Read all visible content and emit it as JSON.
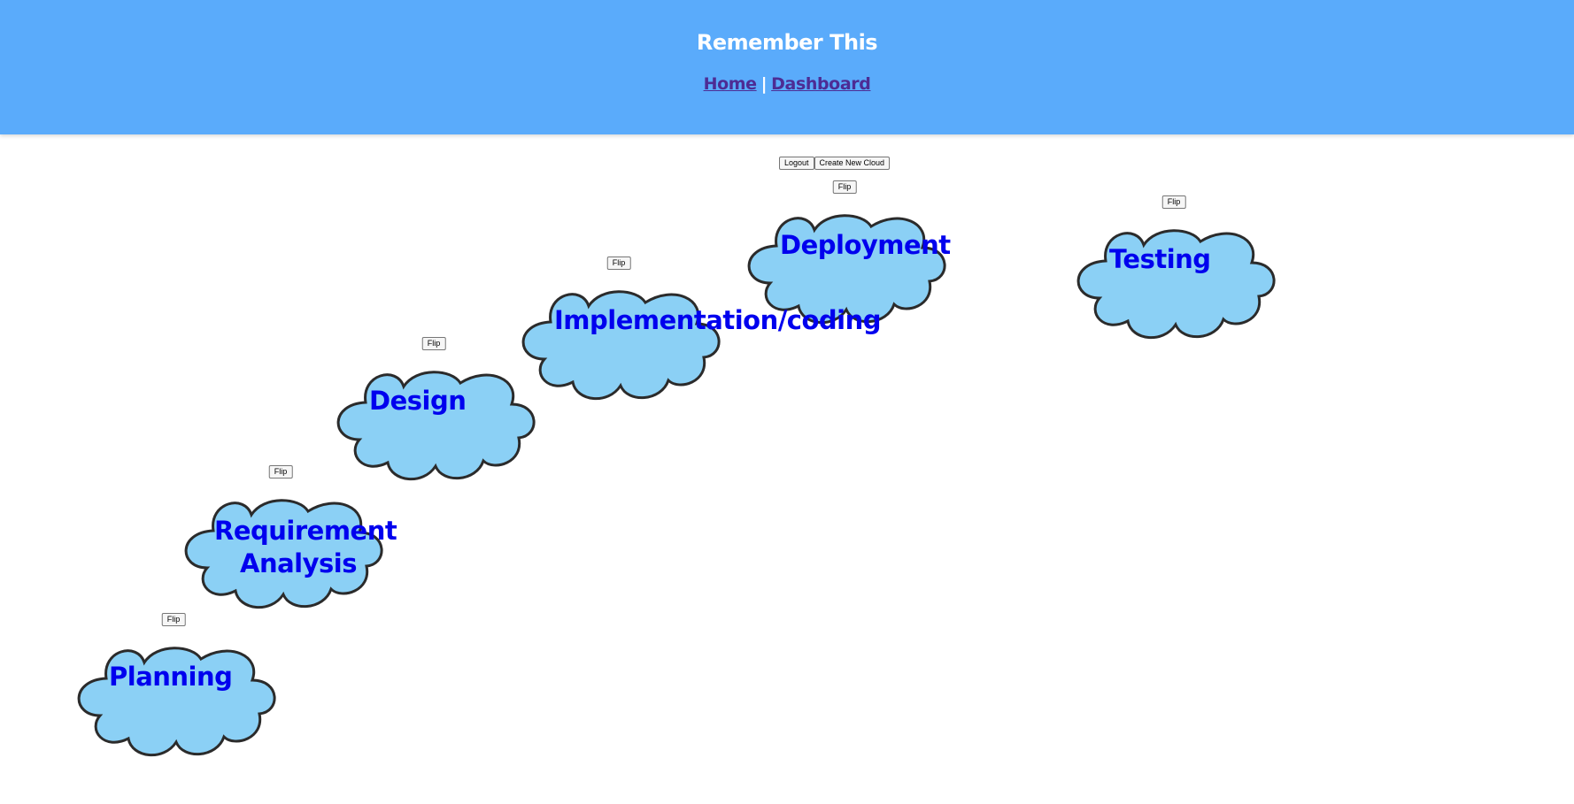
{
  "header": {
    "title": "Remember This",
    "nav": {
      "home": "Home",
      "separator": "|",
      "dashboard": "Dashboard"
    }
  },
  "toolbar": {
    "logout_label": "Logout",
    "create_label": "Create New Cloud"
  },
  "clouds": [
    {
      "flip_label": "Flip",
      "text": "Deployment"
    },
    {
      "flip_label": "Flip",
      "text": "Testing"
    },
    {
      "flip_label": "Flip",
      "text": "Implementation/coding"
    },
    {
      "flip_label": "Flip",
      "text": "Design"
    },
    {
      "flip_label": "Flip",
      "text": "Requirement Analysis"
    },
    {
      "flip_label": "Flip",
      "text": "Planning"
    }
  ],
  "colors": {
    "header_bg": "#5aabfb",
    "cloud_fill": "#8bd0f5",
    "cloud_stroke": "#2b2b2b",
    "cloud_text": "#0000ee",
    "nav_link": "#4d2c94"
  }
}
